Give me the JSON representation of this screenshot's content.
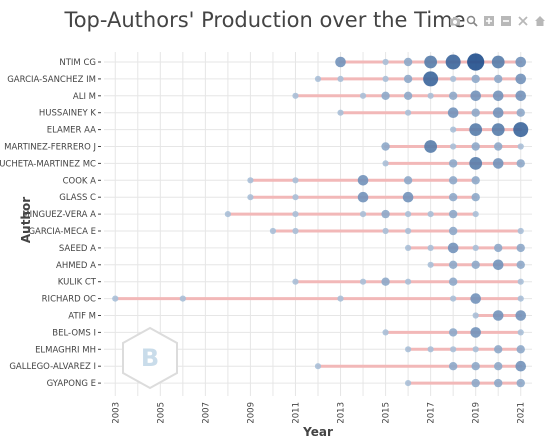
{
  "chart_data": {
    "type": "scatter",
    "title": "Top-Authors' Production over the Time",
    "xlabel": "Year",
    "ylabel": "Author",
    "xlim": [
      2002.5,
      2021.5
    ],
    "x_ticks": [
      "2003",
      "2005",
      "2007",
      "2009",
      "2011",
      "2013",
      "2015",
      "2017",
      "2019",
      "2021"
    ],
    "grid": true,
    "colors": {
      "line": "#f2b8b8",
      "point_light": "#a9c0d8",
      "point_dark": "#1f4e8c",
      "grid": "#e6e6e6",
      "tick": "#444444"
    },
    "authors": [
      {
        "name": "NTIM CG",
        "start": 2013,
        "end": 2021,
        "points": [
          [
            2013,
            3
          ],
          [
            2015,
            1
          ],
          [
            2016,
            2
          ],
          [
            2017,
            4
          ],
          [
            2018,
            5
          ],
          [
            2019,
            6
          ],
          [
            2020,
            4
          ],
          [
            2021,
            3
          ]
        ]
      },
      {
        "name": "GARCIA-SANCHEZ IM",
        "start": 2012,
        "end": 2021,
        "points": [
          [
            2012,
            1
          ],
          [
            2013,
            1
          ],
          [
            2015,
            1
          ],
          [
            2016,
            2
          ],
          [
            2017,
            5
          ],
          [
            2018,
            1
          ],
          [
            2019,
            2
          ],
          [
            2020,
            2
          ],
          [
            2021,
            3
          ]
        ]
      },
      {
        "name": "ALI M",
        "start": 2011,
        "end": 2021,
        "points": [
          [
            2011,
            1
          ],
          [
            2014,
            1
          ],
          [
            2015,
            2
          ],
          [
            2016,
            2
          ],
          [
            2017,
            1
          ],
          [
            2018,
            2
          ],
          [
            2019,
            3
          ],
          [
            2020,
            3
          ],
          [
            2021,
            3
          ]
        ]
      },
      {
        "name": "HUSSAINEY K",
        "start": 2013,
        "end": 2021,
        "points": [
          [
            2013,
            1
          ],
          [
            2016,
            1
          ],
          [
            2018,
            3
          ],
          [
            2019,
            2
          ],
          [
            2020,
            3
          ],
          [
            2021,
            2
          ]
        ]
      },
      {
        "name": "ELAMER AA",
        "start": 2018,
        "end": 2021,
        "points": [
          [
            2018,
            1
          ],
          [
            2019,
            4
          ],
          [
            2020,
            4
          ],
          [
            2021,
            5
          ]
        ]
      },
      {
        "name": "MARTINEZ-FERRERO J",
        "start": 2015,
        "end": 2021,
        "points": [
          [
            2015,
            2
          ],
          [
            2017,
            4
          ],
          [
            2018,
            1
          ],
          [
            2019,
            2
          ],
          [
            2020,
            2
          ],
          [
            2021,
            1
          ]
        ]
      },
      {
        "name": "PUCHETA-MARTINEZ MC",
        "start": 2015,
        "end": 2021,
        "points": [
          [
            2015,
            1
          ],
          [
            2018,
            2
          ],
          [
            2019,
            4
          ],
          [
            2020,
            3
          ],
          [
            2021,
            2
          ]
        ]
      },
      {
        "name": "COOK A",
        "start": 2009,
        "end": 2019,
        "points": [
          [
            2009,
            1
          ],
          [
            2011,
            1
          ],
          [
            2014,
            3
          ],
          [
            2016,
            2
          ],
          [
            2018,
            2
          ],
          [
            2019,
            2
          ]
        ]
      },
      {
        "name": "GLASS C",
        "start": 2009,
        "end": 2019,
        "points": [
          [
            2009,
            1
          ],
          [
            2011,
            1
          ],
          [
            2014,
            3
          ],
          [
            2016,
            3
          ],
          [
            2018,
            2
          ],
          [
            2019,
            2
          ]
        ]
      },
      {
        "name": "MINGUEZ-VERA A",
        "start": 2008,
        "end": 2019,
        "points": [
          [
            2008,
            1
          ],
          [
            2011,
            1
          ],
          [
            2014,
            1
          ],
          [
            2015,
            2
          ],
          [
            2016,
            1
          ],
          [
            2017,
            1
          ],
          [
            2018,
            2
          ],
          [
            2019,
            1
          ]
        ]
      },
      {
        "name": "GARCIA-MECA E",
        "start": 2010,
        "end": 2021,
        "points": [
          [
            2010,
            1
          ],
          [
            2011,
            1
          ],
          [
            2015,
            1
          ],
          [
            2016,
            1
          ],
          [
            2018,
            2
          ],
          [
            2021,
            1
          ]
        ]
      },
      {
        "name": "SAEED A",
        "start": 2016,
        "end": 2021,
        "points": [
          [
            2016,
            1
          ],
          [
            2017,
            1
          ],
          [
            2018,
            3
          ],
          [
            2019,
            1
          ],
          [
            2020,
            2
          ],
          [
            2021,
            2
          ]
        ]
      },
      {
        "name": "AHMED A",
        "start": 2017,
        "end": 2021,
        "points": [
          [
            2017,
            1
          ],
          [
            2018,
            2
          ],
          [
            2019,
            2
          ],
          [
            2020,
            3
          ],
          [
            2021,
            2
          ]
        ]
      },
      {
        "name": "KULIK CT",
        "start": 2011,
        "end": 2021,
        "points": [
          [
            2011,
            1
          ],
          [
            2014,
            1
          ],
          [
            2015,
            2
          ],
          [
            2016,
            1
          ],
          [
            2018,
            2
          ],
          [
            2021,
            1
          ]
        ]
      },
      {
        "name": "RICHARD OC",
        "start": 2003,
        "end": 2021,
        "points": [
          [
            2003,
            1
          ],
          [
            2006,
            1
          ],
          [
            2013,
            1
          ],
          [
            2018,
            1
          ],
          [
            2019,
            3
          ],
          [
            2021,
            1
          ]
        ]
      },
      {
        "name": "ATIF M",
        "start": 2019,
        "end": 2021,
        "points": [
          [
            2019,
            1
          ],
          [
            2020,
            3
          ],
          [
            2021,
            3
          ]
        ]
      },
      {
        "name": "BEL-OMS I",
        "start": 2015,
        "end": 2021,
        "points": [
          [
            2015,
            1
          ],
          [
            2018,
            2
          ],
          [
            2019,
            3
          ],
          [
            2021,
            1
          ]
        ]
      },
      {
        "name": "ELMAGHRI MH",
        "start": 2016,
        "end": 2021,
        "points": [
          [
            2016,
            1
          ],
          [
            2017,
            1
          ],
          [
            2018,
            1
          ],
          [
            2019,
            1
          ],
          [
            2020,
            2
          ],
          [
            2021,
            2
          ]
        ]
      },
      {
        "name": "GALLEGO-ALVAREZ I",
        "start": 2012,
        "end": 2021,
        "points": [
          [
            2012,
            1
          ],
          [
            2018,
            2
          ],
          [
            2019,
            2
          ],
          [
            2020,
            2
          ],
          [
            2021,
            3
          ]
        ]
      },
      {
        "name": "GYAPONG E",
        "start": 2016,
        "end": 2021,
        "points": [
          [
            2016,
            1
          ],
          [
            2019,
            2
          ],
          [
            2020,
            2
          ],
          [
            2021,
            2
          ]
        ]
      }
    ]
  },
  "icons": {
    "modebar": [
      "camera-icon",
      "zoom-icon",
      "zoom-in-icon",
      "zoom-out-icon",
      "autoscale-icon",
      "home-icon"
    ],
    "watermark": "bibliometrix-logo"
  }
}
